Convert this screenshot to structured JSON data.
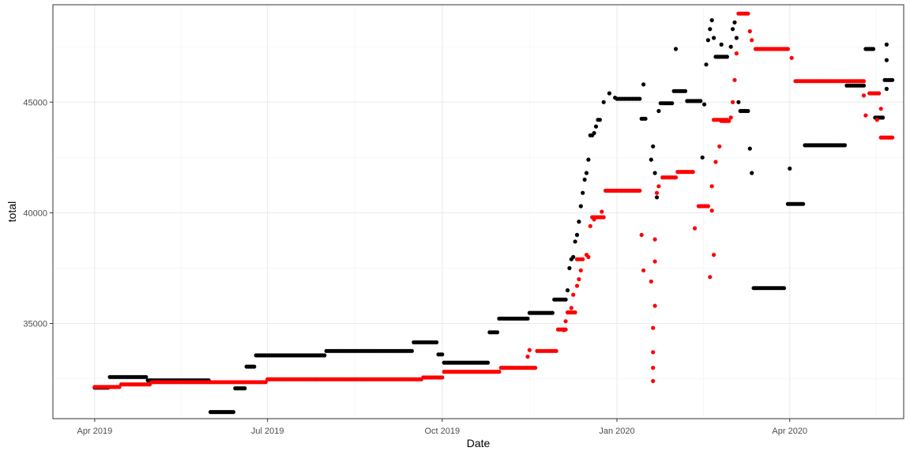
{
  "chart_data": {
    "type": "scatter",
    "title": "",
    "xlabel": "Date",
    "ylabel": "total",
    "x_type": "date",
    "xlim": [
      "2019-03-10",
      "2020-05-31"
    ],
    "ylim": [
      30700,
      49400
    ],
    "x_ticks": [
      {
        "date": "2019-04-01",
        "label": "Apr 2019"
      },
      {
        "date": "2019-07-01",
        "label": "Jul 2019"
      },
      {
        "date": "2019-10-01",
        "label": "Oct 2019"
      },
      {
        "date": "2020-01-01",
        "label": "Jan 2020"
      },
      {
        "date": "2020-04-01",
        "label": "Apr 2020"
      }
    ],
    "y_ticks": [
      {
        "value": 35000,
        "label": "35000"
      },
      {
        "value": 40000,
        "label": "40000"
      },
      {
        "value": 45000,
        "label": "45000"
      }
    ],
    "grid": true,
    "legend": "none",
    "series": [
      {
        "color": "#000000",
        "segments": [
          {
            "start": "2019-04-01",
            "end": "2019-04-08",
            "y": 32100
          },
          {
            "start": "2019-04-09",
            "end": "2019-04-28",
            "y": 32580
          },
          {
            "start": "2019-04-29",
            "end": "2019-05-31",
            "y": 32430
          },
          {
            "start": "2019-06-01",
            "end": "2019-06-13",
            "y": 31000
          },
          {
            "start": "2019-06-14",
            "end": "2019-06-19",
            "y": 32070
          },
          {
            "start": "2019-06-20",
            "end": "2019-06-24",
            "y": 33050
          },
          {
            "start": "2019-06-25",
            "end": "2019-07-31",
            "y": 33560
          },
          {
            "start": "2019-08-01",
            "end": "2019-09-15",
            "y": 33760
          },
          {
            "start": "2019-09-16",
            "end": "2019-09-28",
            "y": 34150
          },
          {
            "start": "2019-09-29",
            "end": "2019-10-01",
            "y": 33600
          },
          {
            "start": "2019-10-02",
            "end": "2019-10-25",
            "y": 33230
          },
          {
            "start": "2019-10-26",
            "end": "2019-10-30",
            "y": 34600
          },
          {
            "start": "2019-10-31",
            "end": "2019-11-15",
            "y": 35220
          },
          {
            "start": "2019-11-16",
            "end": "2019-11-28",
            "y": 35480
          },
          {
            "start": "2019-11-29",
            "end": "2019-12-05",
            "y": 36080
          },
          {
            "start": "2020-01-01",
            "end": "2020-01-13",
            "y": 45150
          },
          {
            "start": "2020-01-14",
            "end": "2020-01-16",
            "y": 44250
          },
          {
            "start": "2020-01-24",
            "end": "2020-01-30",
            "y": 44950
          },
          {
            "start": "2020-01-31",
            "end": "2020-02-06",
            "y": 45500
          },
          {
            "start": "2020-02-07",
            "end": "2020-02-14",
            "y": 45050
          },
          {
            "start": "2020-02-22",
            "end": "2020-02-28",
            "y": 47050
          },
          {
            "start": "2020-03-06",
            "end": "2020-03-10",
            "y": 44600
          },
          {
            "start": "2020-03-13",
            "end": "2020-03-29",
            "y": 36600
          },
          {
            "start": "2020-03-31",
            "end": "2020-04-08",
            "y": 40400
          },
          {
            "start": "2020-04-09",
            "end": "2020-04-30",
            "y": 43050
          },
          {
            "start": "2020-05-01",
            "end": "2020-05-10",
            "y": 45750
          },
          {
            "start": "2020-05-11",
            "end": "2020-05-15",
            "y": 47400
          },
          {
            "start": "2020-05-16",
            "end": "2020-05-20",
            "y": 44300
          },
          {
            "start": "2020-05-21",
            "end": "2020-05-25",
            "y": 46000
          }
        ],
        "points": [
          [
            "2019-12-06",
            36500
          ],
          [
            "2019-12-07",
            37500
          ],
          [
            "2019-12-08",
            37900
          ],
          [
            "2019-12-09",
            38000
          ],
          [
            "2019-12-10",
            38700
          ],
          [
            "2019-12-11",
            39000
          ],
          [
            "2019-12-12",
            39600
          ],
          [
            "2019-12-13",
            40300
          ],
          [
            "2019-12-14",
            40900
          ],
          [
            "2019-12-15",
            41500
          ],
          [
            "2019-12-16",
            41800
          ],
          [
            "2019-12-17",
            42400
          ],
          [
            "2019-12-18",
            43500
          ],
          [
            "2019-12-19",
            43500
          ],
          [
            "2019-12-20",
            43600
          ],
          [
            "2019-12-21",
            43900
          ],
          [
            "2019-12-22",
            44200
          ],
          [
            "2019-12-23",
            44200
          ],
          [
            "2019-12-25",
            45000
          ],
          [
            "2019-12-28",
            45400
          ],
          [
            "2019-12-31",
            45200
          ],
          [
            "2020-01-15",
            45800
          ],
          [
            "2020-01-19",
            42400
          ],
          [
            "2020-01-20",
            43000
          ],
          [
            "2020-01-21",
            41800
          ],
          [
            "2020-01-22",
            40700
          ],
          [
            "2020-01-23",
            44600
          ],
          [
            "2020-02-01",
            47400
          ],
          [
            "2020-02-15",
            42500
          ],
          [
            "2020-02-16",
            44900
          ],
          [
            "2020-02-17",
            46700
          ],
          [
            "2020-02-18",
            47800
          ],
          [
            "2020-02-19",
            48300
          ],
          [
            "2020-02-20",
            48700
          ],
          [
            "2020-02-21",
            47900
          ],
          [
            "2020-02-25",
            47600
          ],
          [
            "2020-03-01",
            47500
          ],
          [
            "2020-03-02",
            48300
          ],
          [
            "2020-03-03",
            48600
          ],
          [
            "2020-03-04",
            47900
          ],
          [
            "2020-03-05",
            45000
          ],
          [
            "2020-03-11",
            42900
          ],
          [
            "2020-03-12",
            41800
          ],
          [
            "2020-04-01",
            42000
          ],
          [
            "2020-05-22",
            47600
          ],
          [
            "2020-05-22",
            46900
          ],
          [
            "2020-05-22",
            45600
          ]
        ]
      },
      {
        "color": "#ff0000",
        "segments": [
          {
            "start": "2019-04-01",
            "end": "2019-04-14",
            "y": 32130
          },
          {
            "start": "2019-04-15",
            "end": "2019-04-30",
            "y": 32250
          },
          {
            "start": "2019-05-01",
            "end": "2019-06-30",
            "y": 32350
          },
          {
            "start": "2019-07-01",
            "end": "2019-09-20",
            "y": 32480
          },
          {
            "start": "2019-09-21",
            "end": "2019-10-01",
            "y": 32560
          },
          {
            "start": "2019-10-02",
            "end": "2019-10-31",
            "y": 32820
          },
          {
            "start": "2019-11-01",
            "end": "2019-11-19",
            "y": 33000
          },
          {
            "start": "2019-11-20",
            "end": "2019-11-30",
            "y": 33760
          },
          {
            "start": "2019-12-01",
            "end": "2019-12-05",
            "y": 34730
          },
          {
            "start": "2019-12-06",
            "end": "2019-12-10",
            "y": 35500
          },
          {
            "start": "2019-12-11",
            "end": "2019-12-14",
            "y": 37900
          },
          {
            "start": "2019-12-19",
            "end": "2019-12-25",
            "y": 39800
          },
          {
            "start": "2019-12-26",
            "end": "2020-01-13",
            "y": 41000
          },
          {
            "start": "2020-01-25",
            "end": "2020-02-01",
            "y": 41600
          },
          {
            "start": "2020-02-02",
            "end": "2020-02-10",
            "y": 41850
          },
          {
            "start": "2020-02-13",
            "end": "2020-02-18",
            "y": 40300
          },
          {
            "start": "2020-02-21",
            "end": "2020-02-28",
            "y": 44200
          },
          {
            "start": "2020-02-25",
            "end": "2020-02-29",
            "y": 44150
          },
          {
            "start": "2020-03-05",
            "end": "2020-03-10",
            "y": 49000
          },
          {
            "start": "2020-03-14",
            "end": "2020-03-31",
            "y": 47400
          },
          {
            "start": "2020-04-04",
            "end": "2020-04-30",
            "y": 45950
          },
          {
            "start": "2020-05-01",
            "end": "2020-05-10",
            "y": 45950
          },
          {
            "start": "2020-05-13",
            "end": "2020-05-18",
            "y": 45400
          },
          {
            "start": "2020-05-19",
            "end": "2020-05-25",
            "y": 43400
          }
        ],
        "points": [
          [
            "2019-11-15",
            33500
          ],
          [
            "2019-11-16",
            33800
          ],
          [
            "2019-12-04",
            34700
          ],
          [
            "2019-12-05",
            35100
          ],
          [
            "2019-12-08",
            35700
          ],
          [
            "2019-12-09",
            36300
          ],
          [
            "2019-12-11",
            36700
          ],
          [
            "2019-12-12",
            37000
          ],
          [
            "2019-12-13",
            37400
          ],
          [
            "2019-12-16",
            38100
          ],
          [
            "2019-12-17",
            38000
          ],
          [
            "2019-12-18",
            39400
          ],
          [
            "2019-12-20",
            39700
          ],
          [
            "2019-12-24",
            40050
          ],
          [
            "2020-01-14",
            39000
          ],
          [
            "2020-01-15",
            37400
          ],
          [
            "2020-01-19",
            36900
          ],
          [
            "2020-01-20",
            34800
          ],
          [
            "2020-01-20",
            33700
          ],
          [
            "2020-01-20",
            33000
          ],
          [
            "2020-01-20",
            32400
          ],
          [
            "2020-01-21",
            38800
          ],
          [
            "2020-01-21",
            37800
          ],
          [
            "2020-01-21",
            35800
          ],
          [
            "2020-01-22",
            40900
          ],
          [
            "2020-01-23",
            41200
          ],
          [
            "2020-02-11",
            39300
          ],
          [
            "2020-02-19",
            37100
          ],
          [
            "2020-02-20",
            41200
          ],
          [
            "2020-02-20",
            40100
          ],
          [
            "2020-02-21",
            38100
          ],
          [
            "2020-02-22",
            42300
          ],
          [
            "2020-02-24",
            43000
          ],
          [
            "2020-03-01",
            44300
          ],
          [
            "2020-03-02",
            45000
          ],
          [
            "2020-03-03",
            46000
          ],
          [
            "2020-03-04",
            47200
          ],
          [
            "2020-03-11",
            48200
          ],
          [
            "2020-03-12",
            47800
          ],
          [
            "2020-04-02",
            47000
          ],
          [
            "2020-05-10",
            45300
          ],
          [
            "2020-05-11",
            44400
          ],
          [
            "2020-05-17",
            44200
          ],
          [
            "2020-05-19",
            44700
          ]
        ]
      }
    ]
  }
}
